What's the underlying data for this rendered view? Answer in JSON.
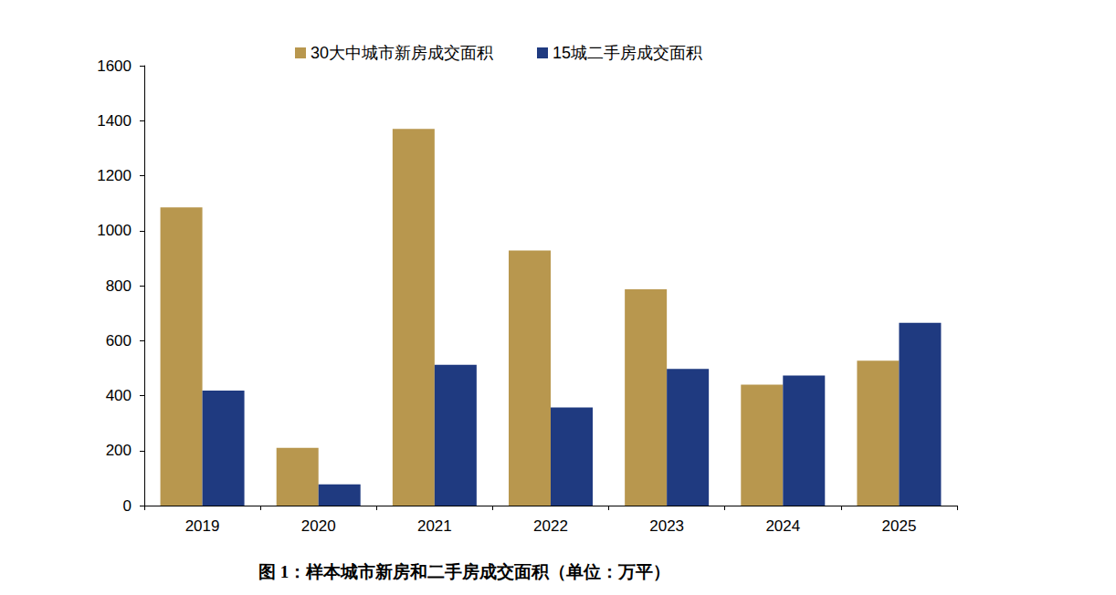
{
  "chart_data": {
    "type": "bar",
    "title": "图 1：样本城市新房和二手房成交面积（单位：万平）",
    "categories": [
      "2019",
      "2020",
      "2021",
      "2022",
      "2023",
      "2024",
      "2025"
    ],
    "series": [
      {
        "name": "30大中城市新房成交面积",
        "color": "#B8974E",
        "values": [
          1085,
          210,
          1370,
          928,
          787,
          440,
          527
        ]
      },
      {
        "name": "15城二手房成交面积",
        "color": "#1F3A80",
        "values": [
          418,
          77,
          512,
          357,
          497,
          473,
          665
        ]
      }
    ],
    "ylim": [
      0,
      1600
    ],
    "yticks": [
      0,
      200,
      400,
      600,
      800,
      1000,
      1200,
      1400,
      1600
    ],
    "grid": false,
    "legend": "top"
  }
}
